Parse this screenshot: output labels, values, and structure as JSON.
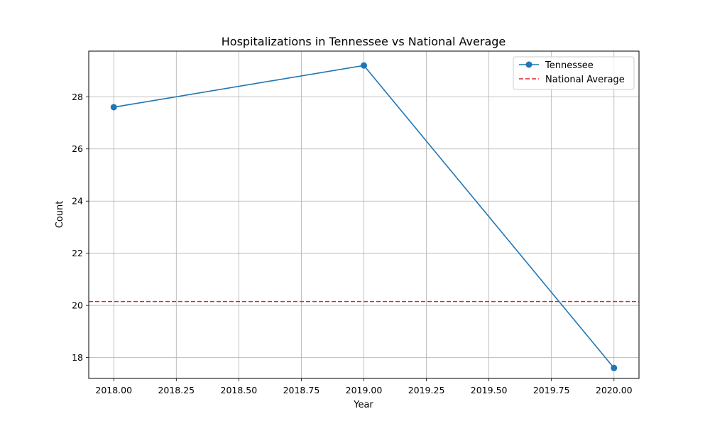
{
  "chart_data": {
    "type": "line",
    "title": "Hospitalizations in Tennessee vs National Average",
    "xlabel": "Year",
    "ylabel": "Count",
    "xlim": [
      2017.9,
      2020.1
    ],
    "ylim": [
      17.2,
      29.75
    ],
    "grid": true,
    "legend_position": "top-right",
    "x_ticks": [
      {
        "value": 2018.0,
        "label": "2018.00"
      },
      {
        "value": 2018.25,
        "label": "2018.25"
      },
      {
        "value": 2018.5,
        "label": "2018.50"
      },
      {
        "value": 2018.75,
        "label": "2018.75"
      },
      {
        "value": 2019.0,
        "label": "2019.00"
      },
      {
        "value": 2019.25,
        "label": "2019.25"
      },
      {
        "value": 2019.5,
        "label": "2019.50"
      },
      {
        "value": 2019.75,
        "label": "2019.75"
      },
      {
        "value": 2020.0,
        "label": "2020.00"
      }
    ],
    "y_ticks": [
      {
        "value": 18,
        "label": "18"
      },
      {
        "value": 20,
        "label": "20"
      },
      {
        "value": 22,
        "label": "22"
      },
      {
        "value": 24,
        "label": "24"
      },
      {
        "value": 26,
        "label": "26"
      },
      {
        "value": 28,
        "label": "28"
      }
    ],
    "series": [
      {
        "name": "Tennessee",
        "color": "#1f77b4",
        "style": "solid-with-markers",
        "x": [
          2018,
          2019,
          2020
        ],
        "y": [
          27.6,
          29.2,
          17.6
        ]
      }
    ],
    "hlines": [
      {
        "name": "National Average",
        "color": "#d62728",
        "style": "dashed",
        "y": 20.15
      }
    ]
  }
}
